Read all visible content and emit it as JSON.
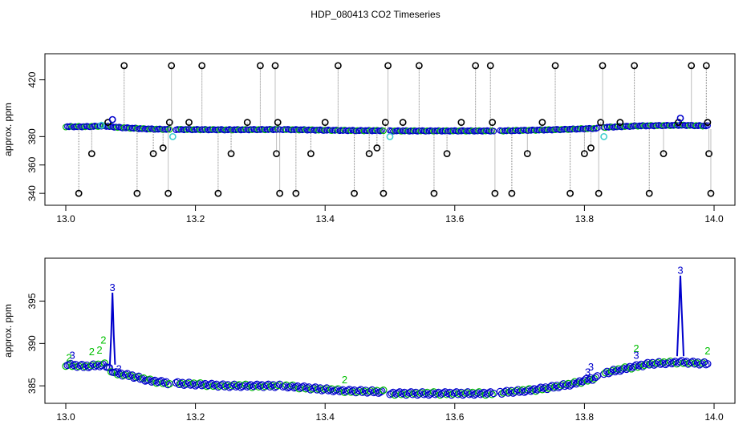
{
  "title": "HDP_080413  CO2 Timeseries",
  "chart_data": [
    {
      "type": "scatter",
      "ylabel": "approx. ppm",
      "xlim": [
        13.0,
        14.0
      ],
      "ylim": [
        335,
        435
      ],
      "x_ticks": [
        "13.0",
        "13.2",
        "13.4",
        "13.6",
        "13.8",
        "14.0"
      ],
      "y_ticks": [
        "340",
        "360",
        "380",
        "420"
      ],
      "colors": {
        "frame": "#000000",
        "series_main": "#0000cc",
        "series_alt": "#00c000",
        "series_cyan": "#40d0d0",
        "drop": "#808080"
      },
      "baseline_segments": [
        {
          "x": [
            13.0,
            13.03,
            13.06,
            13.08,
            13.12,
            13.16
          ],
          "y": [
            387,
            387,
            387.5,
            386.5,
            385.5,
            385
          ]
        },
        {
          "x": [
            13.17,
            13.25,
            13.33
          ],
          "y": [
            385,
            384.8,
            385
          ]
        },
        {
          "x": [
            13.335,
            13.4,
            13.45,
            13.49
          ],
          "y": [
            385,
            384.5,
            384.2,
            384.2
          ]
        },
        {
          "x": [
            13.5,
            13.6,
            13.66
          ],
          "y": [
            384,
            384,
            384
          ]
        },
        {
          "x": [
            13.67,
            13.75,
            13.82
          ],
          "y": [
            384,
            384.8,
            385.8
          ]
        },
        {
          "x": [
            13.83,
            13.88,
            13.95,
            13.99
          ],
          "y": [
            386.5,
            387.5,
            388,
            387.5
          ]
        }
      ],
      "spikes": [
        {
          "x": 13.02,
          "y": 340
        },
        {
          "x": 13.04,
          "y": 368
        },
        {
          "x": 13.065,
          "y": 390
        },
        {
          "x": 13.09,
          "y": 430
        },
        {
          "x": 13.11,
          "y": 340
        },
        {
          "x": 13.135,
          "y": 368
        },
        {
          "x": 13.15,
          "y": 372
        },
        {
          "x": 13.158,
          "y": 340
        },
        {
          "x": 13.16,
          "y": 390
        },
        {
          "x": 13.163,
          "y": 430
        },
        {
          "x": 13.19,
          "y": 390
        },
        {
          "x": 13.21,
          "y": 430
        },
        {
          "x": 13.235,
          "y": 340
        },
        {
          "x": 13.255,
          "y": 368
        },
        {
          "x": 13.28,
          "y": 390
        },
        {
          "x": 13.3,
          "y": 430
        },
        {
          "x": 13.323,
          "y": 430
        },
        {
          "x": 13.325,
          "y": 368
        },
        {
          "x": 13.327,
          "y": 390
        },
        {
          "x": 13.33,
          "y": 340
        },
        {
          "x": 13.355,
          "y": 340
        },
        {
          "x": 13.378,
          "y": 368
        },
        {
          "x": 13.4,
          "y": 390
        },
        {
          "x": 13.42,
          "y": 430
        },
        {
          "x": 13.445,
          "y": 340
        },
        {
          "x": 13.468,
          "y": 368
        },
        {
          "x": 13.48,
          "y": 372
        },
        {
          "x": 13.49,
          "y": 340
        },
        {
          "x": 13.493,
          "y": 390
        },
        {
          "x": 13.497,
          "y": 430
        },
        {
          "x": 13.52,
          "y": 390
        },
        {
          "x": 13.545,
          "y": 430
        },
        {
          "x": 13.568,
          "y": 340
        },
        {
          "x": 13.588,
          "y": 368
        },
        {
          "x": 13.61,
          "y": 390
        },
        {
          "x": 13.632,
          "y": 430
        },
        {
          "x": 13.655,
          "y": 430
        },
        {
          "x": 13.658,
          "y": 390
        },
        {
          "x": 13.662,
          "y": 340
        },
        {
          "x": 13.688,
          "y": 340
        },
        {
          "x": 13.712,
          "y": 368
        },
        {
          "x": 13.735,
          "y": 390
        },
        {
          "x": 13.755,
          "y": 430
        },
        {
          "x": 13.778,
          "y": 340
        },
        {
          "x": 13.8,
          "y": 368
        },
        {
          "x": 13.81,
          "y": 372
        },
        {
          "x": 13.822,
          "y": 340
        },
        {
          "x": 13.825,
          "y": 390
        },
        {
          "x": 13.828,
          "y": 430
        },
        {
          "x": 13.855,
          "y": 390
        },
        {
          "x": 13.877,
          "y": 430
        },
        {
          "x": 13.9,
          "y": 340
        },
        {
          "x": 13.922,
          "y": 368
        },
        {
          "x": 13.945,
          "y": 390
        },
        {
          "x": 13.965,
          "y": 430
        },
        {
          "x": 13.988,
          "y": 430
        },
        {
          "x": 13.99,
          "y": 390
        },
        {
          "x": 13.992,
          "y": 368
        },
        {
          "x": 13.995,
          "y": 340
        }
      ],
      "cyan_points": [
        {
          "x": 13.055,
          "y": 388
        },
        {
          "x": 13.165,
          "y": 380
        },
        {
          "x": 13.5,
          "y": 380
        },
        {
          "x": 13.83,
          "y": 380
        }
      ],
      "blue_spikes": [
        {
          "x": 13.072,
          "y": 392
        },
        {
          "x": 13.948,
          "y": 393
        }
      ]
    },
    {
      "type": "line",
      "ylabel": "approx. ppm",
      "xlim": [
        13.0,
        14.0
      ],
      "ylim": [
        383.5,
        399.5
      ],
      "x_ticks": [
        "13.0",
        "13.2",
        "13.4",
        "13.6",
        "13.8",
        "14.0"
      ],
      "y_ticks": [
        "385",
        "390",
        "395"
      ],
      "colors": {
        "frame": "#000000",
        "series_main": "#0000cc",
        "series_alt": "#00c000",
        "line": "#0000cc"
      },
      "baseline_segments": [
        {
          "x": [
            13.0,
            13.03,
            13.06,
            13.075,
            13.1,
            13.13,
            13.16
          ],
          "y": [
            387.5,
            387.3,
            387.5,
            386.5,
            386.2,
            385.6,
            385.3
          ]
        },
        {
          "x": [
            13.17,
            13.25,
            13.33
          ],
          "y": [
            385.3,
            385,
            385
          ]
        },
        {
          "x": [
            13.335,
            13.38,
            13.43,
            13.49
          ],
          "y": [
            385,
            384.7,
            384.4,
            384.3
          ]
        },
        {
          "x": [
            13.5,
            13.6,
            13.66
          ],
          "y": [
            384.1,
            384.1,
            384.1
          ]
        },
        {
          "x": [
            13.67,
            13.72,
            13.78,
            13.82
          ],
          "y": [
            384.2,
            384.5,
            385.2,
            386
          ]
        },
        {
          "x": [
            13.83,
            13.86,
            13.9,
            13.95,
            13.99
          ],
          "y": [
            386.5,
            387,
            387.6,
            387.8,
            387.6
          ]
        }
      ],
      "peaks": [
        {
          "x": [
            13.068,
            13.07,
            13.072,
            13.074,
            13.076
          ],
          "y": [
            387.5,
            391,
            396,
            391,
            387.5
          ]
        },
        {
          "x": [
            13.943,
            13.946,
            13.948,
            13.95,
            13.953
          ],
          "y": [
            388.5,
            394,
            398,
            394,
            388.5
          ]
        }
      ],
      "labels": [
        {
          "text": "3",
          "x": 13.072,
          "y": 396.2,
          "color": "#0000cc"
        },
        {
          "text": "3",
          "x": 13.948,
          "y": 398.2,
          "color": "#0000cc"
        },
        {
          "text": "2",
          "x": 13.058,
          "y": 390,
          "color": "#00c000"
        },
        {
          "text": "2",
          "x": 13.04,
          "y": 388.6,
          "color": "#00c000"
        },
        {
          "text": "2",
          "x": 13.052,
          "y": 388.8,
          "color": "#00c000"
        },
        {
          "text": "3",
          "x": 13.01,
          "y": 388.2,
          "color": "#0000cc"
        },
        {
          "text": "2",
          "x": 13.005,
          "y": 387.9,
          "color": "#00c000"
        },
        {
          "text": "3",
          "x": 13.082,
          "y": 386.6,
          "color": "#0000cc"
        },
        {
          "text": "2",
          "x": 13.43,
          "y": 385.3,
          "color": "#00c000"
        },
        {
          "text": "3",
          "x": 13.81,
          "y": 386.8,
          "color": "#0000cc"
        },
        {
          "text": "3",
          "x": 13.805,
          "y": 386.2,
          "color": "#0000cc"
        },
        {
          "text": "2",
          "x": 13.88,
          "y": 389,
          "color": "#00c000"
        },
        {
          "text": "3",
          "x": 13.88,
          "y": 388.2,
          "color": "#0000cc"
        },
        {
          "text": "2",
          "x": 13.99,
          "y": 388.7,
          "color": "#00c000"
        }
      ]
    }
  ]
}
